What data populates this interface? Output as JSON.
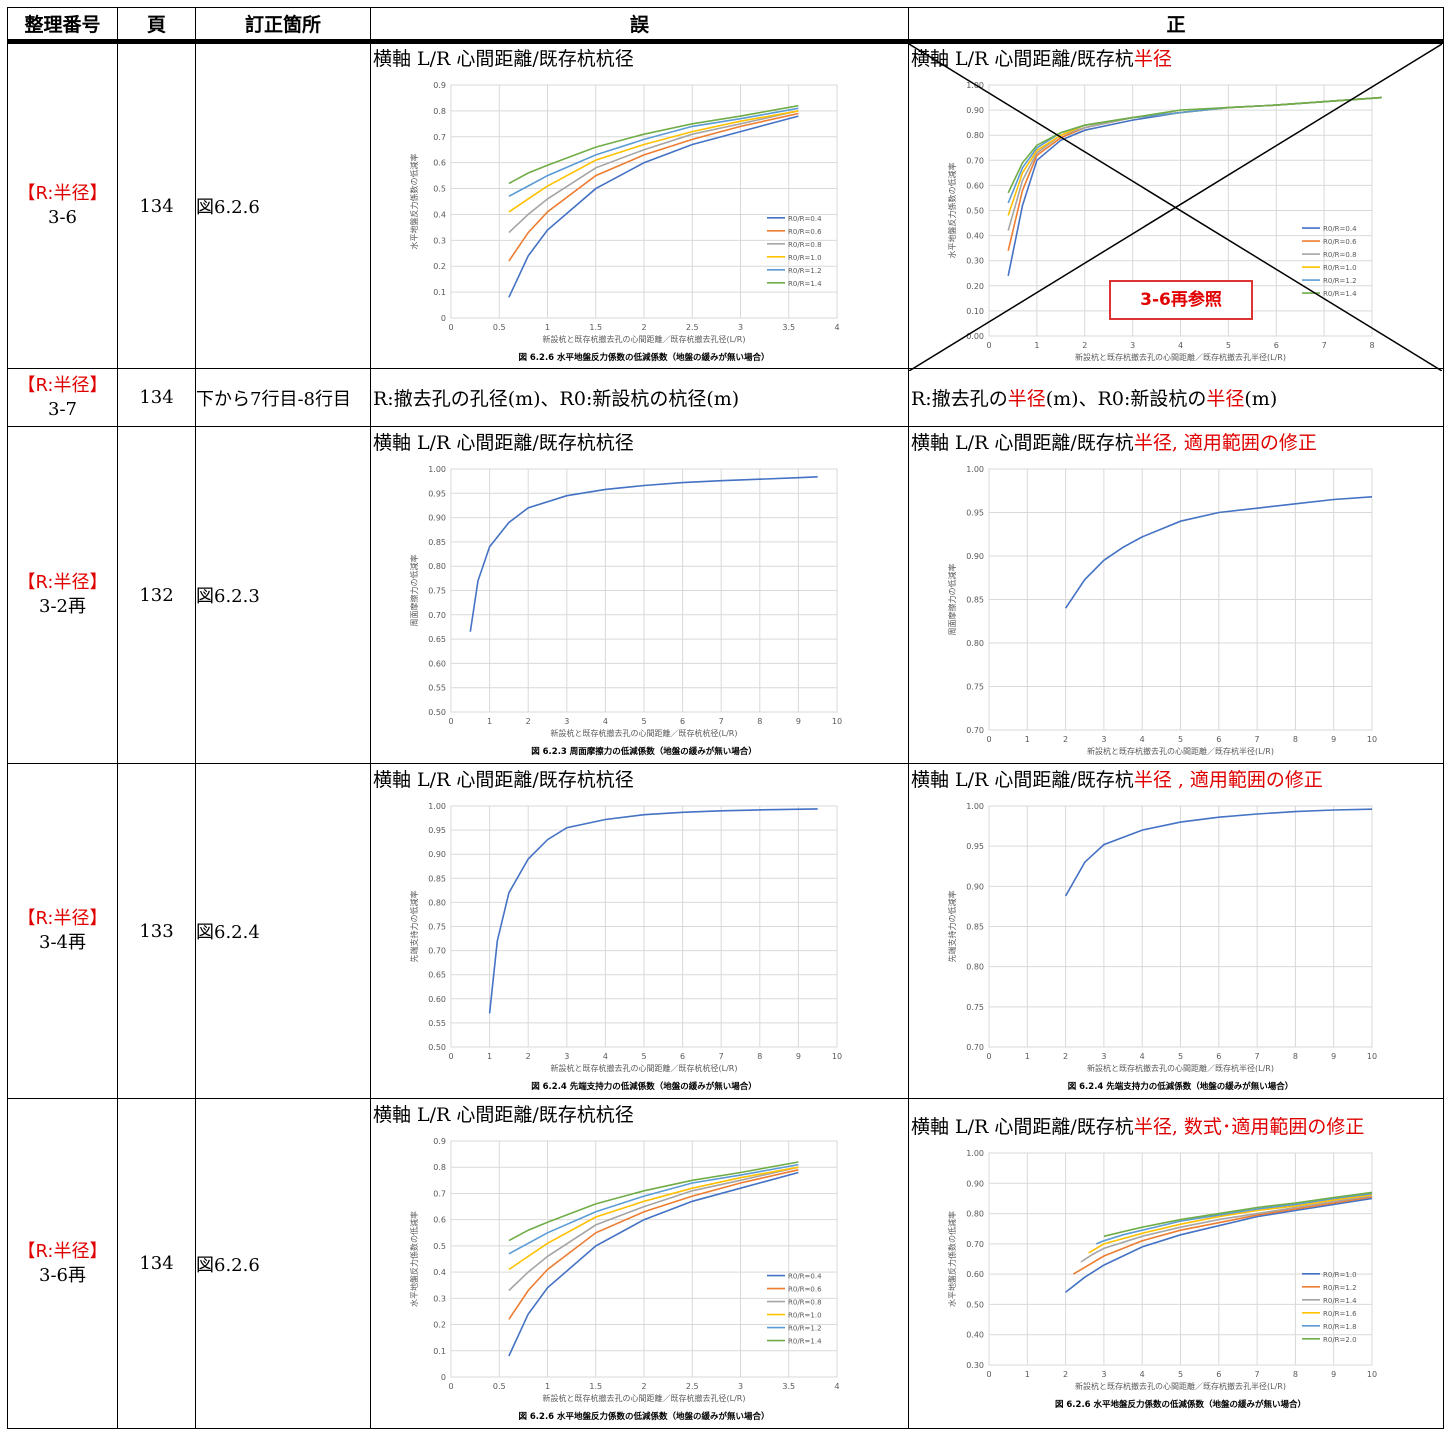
{
  "headers": {
    "num": "整理番号",
    "page": "頁",
    "loc": "訂正箇所",
    "wrong": "誤",
    "right": "正"
  },
  "rows": [
    {
      "tag": "【R:半径】",
      "num": "3-6",
      "page": "134",
      "loc": "図6.2.6",
      "wrong_caption": "横軸 L/R 心間距離/既存杭杭径",
      "right_caption": {
        "pre": "横軸 L/R 心間距離/既存杭",
        "red": "半径"
      }
    },
    {
      "tag": "【R:半径】",
      "num": "3-7",
      "page": "134",
      "loc": "下から7行目-8行目",
      "wrong_text": "R:撤去孔の孔径(m)、R0:新設杭の杭径(m)",
      "right_text": {
        "a": "R:撤去孔の",
        "b": "半径",
        "c": "(m)、R0:新設杭の",
        "d": "半径",
        "e": "(m)"
      }
    },
    {
      "tag": "【R:半径】",
      "num": "3-2再",
      "page": "132",
      "loc": "図6.2.3",
      "wrong_caption": "横軸 L/R 心間距離/既存杭杭径",
      "right_caption": {
        "pre": "横軸 L/R 心間距離/既存杭",
        "red": "半径, 適用範囲の修正"
      }
    },
    {
      "tag": "【R:半径】",
      "num": "3-4再",
      "page": "133",
      "loc": "図6.2.4",
      "wrong_caption": "横軸 L/R 心間距離/既存杭杭径",
      "right_caption": {
        "pre": "横軸 L/R 心間距離/既存杭",
        "red": "半径 , 適用範囲の修正"
      }
    },
    {
      "tag": "【R:半径】",
      "num": "3-6再",
      "page": "134",
      "loc": "図6.2.6",
      "wrong_caption": "横軸 L/R 心間距離/既存杭杭径",
      "right_caption": {
        "pre": "横軸 L/R 心間距離/既存杭",
        "red": "半径, 数式･適用範囲の修正"
      }
    }
  ],
  "stamp": "3-6再参照",
  "chart_data": [
    {
      "id": "c1",
      "type": "line",
      "title": "図 6.2.6 水平地盤反力係数の低減係数（地盤の緩みが無い場合）",
      "xlabel": "新設杭と既存杭撤去孔の心間距離／既存杭撤去孔径(L/R)",
      "ylabel": "水平地盤反力係数の低減率",
      "xlim": [
        0,
        4
      ],
      "ylim": [
        0,
        0.9
      ],
      "xticks": [
        0,
        0.5,
        1,
        1.5,
        2,
        2.5,
        3,
        3.5,
        4
      ],
      "yticks": [
        0,
        0.1,
        0.2,
        0.3,
        0.4,
        0.5,
        0.6,
        0.7,
        0.8,
        0.9
      ],
      "legend": "right",
      "series": [
        {
          "name": "R0/R=0.4",
          "color": "#4472c4",
          "x": [
            0.6,
            0.8,
            1,
            1.5,
            2,
            2.5,
            3,
            3.6
          ],
          "y": [
            0.08,
            0.24,
            0.34,
            0.5,
            0.6,
            0.67,
            0.72,
            0.78
          ]
        },
        {
          "name": "R0/R=0.6",
          "color": "#ed7d31",
          "x": [
            0.6,
            0.8,
            1,
            1.5,
            2,
            2.5,
            3,
            3.6
          ],
          "y": [
            0.22,
            0.33,
            0.41,
            0.55,
            0.63,
            0.69,
            0.74,
            0.79
          ]
        },
        {
          "name": "R0/R=0.8",
          "color": "#a5a5a5",
          "x": [
            0.6,
            0.8,
            1,
            1.5,
            2,
            2.5,
            3,
            3.6
          ],
          "y": [
            0.33,
            0.4,
            0.46,
            0.58,
            0.65,
            0.71,
            0.75,
            0.8
          ]
        },
        {
          "name": "R0/R=1.0",
          "color": "#ffc000",
          "x": [
            0.6,
            0.8,
            1,
            1.5,
            2,
            2.5,
            3,
            3.6
          ],
          "y": [
            0.41,
            0.46,
            0.51,
            0.61,
            0.67,
            0.72,
            0.76,
            0.8
          ]
        },
        {
          "name": "R0/R=1.2",
          "color": "#5b9bd5",
          "x": [
            0.6,
            0.8,
            1,
            1.5,
            2,
            2.5,
            3,
            3.6
          ],
          "y": [
            0.47,
            0.51,
            0.55,
            0.63,
            0.69,
            0.74,
            0.77,
            0.81
          ]
        },
        {
          "name": "R0/R=1.4",
          "color": "#70ad47",
          "x": [
            0.6,
            0.8,
            1,
            1.5,
            2,
            2.5,
            3,
            3.6
          ],
          "y": [
            0.52,
            0.56,
            0.59,
            0.66,
            0.71,
            0.75,
            0.78,
            0.82
          ]
        }
      ]
    },
    {
      "id": "c2",
      "type": "line",
      "title": "",
      "xlabel": "新設杭と既存杭撤去孔の心間距離／既存杭撤去孔半径(L/R)",
      "ylabel": "水平地盤反力係数の低減率",
      "xlim": [
        0,
        8
      ],
      "ylim": [
        0,
        1.0
      ],
      "xticks": [
        0,
        1,
        2,
        3,
        4,
        5,
        6,
        7,
        8
      ],
      "yticks": [
        "0.00",
        "0.10",
        "0.20",
        "0.30",
        "0.40",
        "0.50",
        "0.60",
        "0.70",
        "0.80",
        "0.90",
        "1.00"
      ],
      "legend": "right",
      "series": [
        {
          "name": "R0/R=0.4",
          "color": "#4472c4",
          "x": [
            0.4,
            0.7,
            1,
            1.5,
            2,
            3,
            4,
            5,
            6,
            8.2
          ],
          "y": [
            0.24,
            0.52,
            0.7,
            0.78,
            0.82,
            0.86,
            0.89,
            0.91,
            0.92,
            0.95
          ]
        },
        {
          "name": "R0/R=0.6",
          "color": "#ed7d31",
          "x": [
            0.4,
            0.7,
            1,
            1.5,
            2,
            3,
            4,
            5,
            6,
            8.2
          ],
          "y": [
            0.34,
            0.58,
            0.72,
            0.79,
            0.83,
            0.87,
            0.89,
            0.91,
            0.92,
            0.95
          ]
        },
        {
          "name": "R0/R=0.8",
          "color": "#a5a5a5",
          "x": [
            0.4,
            0.7,
            1,
            1.5,
            2,
            3,
            4,
            5,
            6,
            8.2
          ],
          "y": [
            0.42,
            0.62,
            0.73,
            0.8,
            0.83,
            0.87,
            0.89,
            0.91,
            0.92,
            0.95
          ]
        },
        {
          "name": "R0/R=1.0",
          "color": "#ffc000",
          "x": [
            0.4,
            0.7,
            1,
            1.5,
            2,
            3,
            4,
            5,
            6,
            8.2
          ],
          "y": [
            0.48,
            0.65,
            0.74,
            0.8,
            0.84,
            0.87,
            0.89,
            0.91,
            0.92,
            0.95
          ]
        },
        {
          "name": "R0/R=1.2",
          "color": "#5b9bd5",
          "x": [
            0.4,
            0.7,
            1,
            1.5,
            2,
            3,
            4,
            5,
            6,
            8.2
          ],
          "y": [
            0.53,
            0.67,
            0.75,
            0.81,
            0.84,
            0.87,
            0.89,
            0.91,
            0.92,
            0.95
          ]
        },
        {
          "name": "R0/R=1.4",
          "color": "#70ad47",
          "x": [
            0.4,
            0.7,
            1,
            1.5,
            2,
            3,
            4,
            5,
            6,
            8.2
          ],
          "y": [
            0.57,
            0.69,
            0.76,
            0.81,
            0.84,
            0.87,
            0.9,
            0.91,
            0.92,
            0.95
          ]
        }
      ]
    },
    {
      "id": "c3",
      "type": "line",
      "title": "図 6.2.3 周面摩擦力の低減係数（地盤の緩みが無い場合）",
      "xlabel": "新設杭と既存杭撤去孔の心間距離／既存杭杭径(L/R)",
      "ylabel": "周面摩擦力の低減率",
      "xlim": [
        0,
        10
      ],
      "ylim": [
        0.5,
        1.0
      ],
      "xticks": [
        0,
        1,
        2,
        3,
        4,
        5,
        6,
        7,
        8,
        9,
        10
      ],
      "yticks": [
        "0.50",
        "0.55",
        "0.60",
        "0.65",
        "0.70",
        "0.75",
        "0.80",
        "0.85",
        "0.90",
        "0.95",
        "1.00"
      ],
      "series": [
        {
          "name": "",
          "color": "#4472c4",
          "x": [
            0.5,
            0.7,
            1,
            1.5,
            2,
            3,
            4,
            5,
            6,
            7,
            8,
            9,
            9.5
          ],
          "y": [
            0.665,
            0.77,
            0.84,
            0.89,
            0.92,
            0.945,
            0.958,
            0.966,
            0.972,
            0.976,
            0.979,
            0.982,
            0.984
          ]
        }
      ]
    },
    {
      "id": "c4",
      "type": "line",
      "title": "",
      "xlabel": "新設杭と既存杭撤去孔の心間距離／既存杭半径(L/R)",
      "ylabel": "周面摩擦力の低減率",
      "xlim": [
        0,
        10
      ],
      "ylim": [
        0.7,
        1.0
      ],
      "xticks": [
        0,
        1,
        2,
        3,
        4,
        5,
        6,
        7,
        8,
        9,
        10
      ],
      "yticks": [
        "0.70",
        "0.75",
        "0.80",
        "0.85",
        "0.90",
        "0.95",
        "1.00"
      ],
      "series": [
        {
          "name": "",
          "color": "#4472c4",
          "x": [
            2,
            2.5,
            3,
            3.5,
            4,
            5,
            6,
            7,
            8,
            9,
            10
          ],
          "y": [
            0.84,
            0.873,
            0.895,
            0.91,
            0.922,
            0.94,
            0.95,
            0.955,
            0.96,
            0.965,
            0.968
          ]
        }
      ]
    },
    {
      "id": "c5",
      "type": "line",
      "title": "図 6.2.4 先端支持力の低減係数（地盤の緩みが無い場合）",
      "xlabel": "新設杭と既存杭撤去孔の心間距離／既存杭杭径(L/R)",
      "ylabel": "先端支持力の低減率",
      "xlim": [
        0,
        10
      ],
      "ylim": [
        0.5,
        1.0
      ],
      "xticks": [
        0,
        1,
        2,
        3,
        4,
        5,
        6,
        7,
        8,
        9,
        10
      ],
      "yticks": [
        "0.50",
        "0.55",
        "0.60",
        "0.65",
        "0.70",
        "0.75",
        "0.80",
        "0.85",
        "0.90",
        "0.95",
        "1.00"
      ],
      "series": [
        {
          "name": "",
          "color": "#4472c4",
          "x": [
            1,
            1.2,
            1.5,
            2,
            2.5,
            3,
            4,
            5,
            6,
            7,
            8,
            9.5
          ],
          "y": [
            0.57,
            0.72,
            0.82,
            0.89,
            0.93,
            0.955,
            0.972,
            0.982,
            0.987,
            0.99,
            0.992,
            0.994
          ]
        }
      ]
    },
    {
      "id": "c6",
      "type": "line",
      "title": "図 6.2.4 先端支持力の低減係数（地盤の緩みが無い場合）",
      "xlabel": "新設杭と既存杭撤去孔の心間距離／既存杭半径(L/R)",
      "ylabel": "先端支持力の低減率",
      "xlim": [
        0,
        10
      ],
      "ylim": [
        0.7,
        1.0
      ],
      "xticks": [
        0,
        1,
        2,
        3,
        4,
        5,
        6,
        7,
        8,
        9,
        10
      ],
      "yticks": [
        "0.70",
        "0.75",
        "0.80",
        "0.85",
        "0.90",
        "0.95",
        "1.00"
      ],
      "series": [
        {
          "name": "",
          "color": "#4472c4",
          "x": [
            2,
            2.5,
            3,
            4,
            5,
            6,
            7,
            8,
            9,
            10
          ],
          "y": [
            0.888,
            0.93,
            0.952,
            0.97,
            0.98,
            0.986,
            0.99,
            0.993,
            0.995,
            0.996
          ]
        }
      ]
    },
    {
      "id": "c7",
      "type": "line",
      "title": "図 6.2.6 水平地盤反力係数の低減係数（地盤の緩みが無い場合）",
      "xlabel": "新設杭と既存杭撤去孔の心間距離／既存杭撤去孔径(L/R)",
      "ylabel": "水平地盤反力係数の低減率",
      "xlim": [
        0,
        4
      ],
      "ylim": [
        0,
        0.9
      ],
      "xticks": [
        0,
        0.5,
        1,
        1.5,
        2,
        2.5,
        3,
        3.5,
        4
      ],
      "yticks": [
        0,
        0.1,
        0.2,
        0.3,
        0.4,
        0.5,
        0.6,
        0.7,
        0.8,
        0.9
      ],
      "legend": "right",
      "series": [
        {
          "name": "R0/R=0.4",
          "color": "#4472c4",
          "x": [
            0.6,
            0.8,
            1,
            1.5,
            2,
            2.5,
            3,
            3.6
          ],
          "y": [
            0.08,
            0.24,
            0.34,
            0.5,
            0.6,
            0.67,
            0.72,
            0.78
          ]
        },
        {
          "name": "R0/R=0.6",
          "color": "#ed7d31",
          "x": [
            0.6,
            0.8,
            1,
            1.5,
            2,
            2.5,
            3,
            3.6
          ],
          "y": [
            0.22,
            0.33,
            0.41,
            0.55,
            0.63,
            0.69,
            0.74,
            0.79
          ]
        },
        {
          "name": "R0/R=0.8",
          "color": "#a5a5a5",
          "x": [
            0.6,
            0.8,
            1,
            1.5,
            2,
            2.5,
            3,
            3.6
          ],
          "y": [
            0.33,
            0.4,
            0.46,
            0.58,
            0.65,
            0.71,
            0.75,
            0.8
          ]
        },
        {
          "name": "R0/R=1.0",
          "color": "#ffc000",
          "x": [
            0.6,
            0.8,
            1,
            1.5,
            2,
            2.5,
            3,
            3.6
          ],
          "y": [
            0.41,
            0.46,
            0.51,
            0.61,
            0.67,
            0.72,
            0.76,
            0.8
          ]
        },
        {
          "name": "R0/R=1.2",
          "color": "#5b9bd5",
          "x": [
            0.6,
            0.8,
            1,
            1.5,
            2,
            2.5,
            3,
            3.6
          ],
          "y": [
            0.47,
            0.51,
            0.55,
            0.63,
            0.69,
            0.74,
            0.77,
            0.81
          ]
        },
        {
          "name": "R0/R=1.4",
          "color": "#70ad47",
          "x": [
            0.6,
            0.8,
            1,
            1.5,
            2,
            2.5,
            3,
            3.6
          ],
          "y": [
            0.52,
            0.56,
            0.59,
            0.66,
            0.71,
            0.75,
            0.78,
            0.82
          ]
        }
      ]
    },
    {
      "id": "c8",
      "type": "line",
      "title": "図 6.2.6 水平地盤反力係数の低減係数（地盤の緩みが無い場合）",
      "xlabel": "新設杭と既存杭撤去孔の心間距離／既存杭撤去孔半径(L/R)",
      "ylabel": "水平地盤反力係数の低減率",
      "xlim": [
        0,
        10
      ],
      "ylim": [
        0.3,
        1.0
      ],
      "xticks": [
        0,
        1,
        2,
        3,
        4,
        5,
        6,
        7,
        8,
        9,
        10
      ],
      "yticks": [
        "0.30",
        "0.40",
        "0.50",
        "0.60",
        "0.70",
        "0.80",
        "0.90",
        "1.00"
      ],
      "legend": "right",
      "series": [
        {
          "name": "R0/R=1.0",
          "color": "#4472c4",
          "x": [
            2,
            2.5,
            3,
            4,
            5,
            6,
            7,
            8,
            9,
            10
          ],
          "y": [
            0.54,
            0.59,
            0.63,
            0.69,
            0.73,
            0.76,
            0.79,
            0.81,
            0.83,
            0.85
          ]
        },
        {
          "name": "R0/R=1.2",
          "color": "#ed7d31",
          "x": [
            2.2,
            2.6,
            3,
            4,
            5,
            6,
            7,
            8,
            9,
            10
          ],
          "y": [
            0.6,
            0.63,
            0.66,
            0.71,
            0.745,
            0.77,
            0.795,
            0.815,
            0.835,
            0.855
          ]
        },
        {
          "name": "R0/R=1.4",
          "color": "#a5a5a5",
          "x": [
            2.4,
            2.7,
            3,
            4,
            5,
            6,
            7,
            8,
            9,
            10
          ],
          "y": [
            0.64,
            0.665,
            0.685,
            0.725,
            0.755,
            0.78,
            0.8,
            0.82,
            0.84,
            0.858
          ]
        },
        {
          "name": "R0/R=1.6",
          "color": "#ffc000",
          "x": [
            2.6,
            2.8,
            3,
            4,
            5,
            6,
            7,
            8,
            9,
            10
          ],
          "y": [
            0.67,
            0.685,
            0.7,
            0.735,
            0.765,
            0.79,
            0.81,
            0.825,
            0.845,
            0.862
          ]
        },
        {
          "name": "R0/R=1.8",
          "color": "#5b9bd5",
          "x": [
            2.8,
            3,
            3.5,
            4,
            5,
            6,
            7,
            8,
            9,
            10
          ],
          "y": [
            0.7,
            0.71,
            0.73,
            0.745,
            0.775,
            0.795,
            0.815,
            0.83,
            0.85,
            0.866
          ]
        },
        {
          "name": "R0/R=2.0",
          "color": "#70ad47",
          "x": [
            3,
            3.5,
            4,
            5,
            6,
            7,
            8,
            9,
            10
          ],
          "y": [
            0.725,
            0.74,
            0.755,
            0.78,
            0.8,
            0.82,
            0.835,
            0.853,
            0.87
          ]
        }
      ]
    }
  ]
}
